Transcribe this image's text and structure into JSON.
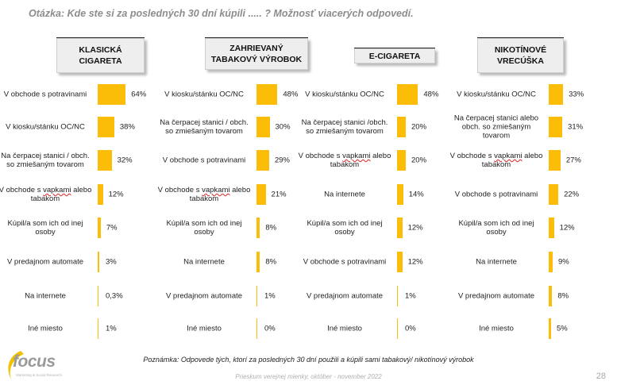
{
  "question": "Otázka: Kde ste si za posledných 30 dní kúpili ..... ? Možnosť viacerých odpovedí.",
  "note": "Poznámka: Odpovede tých, ktorí za posledných 30 dní použili a kúpili sami tabakový/ nikotínový výrobok",
  "footer": "Prieskum verejnej mienky, október - november 2022",
  "page_number": "28",
  "logo": {
    "text": "focus",
    "subtitle": "Marketing & Social Research"
  },
  "bar_color": "#fbbd08",
  "chart_data": [
    {
      "type": "bar",
      "title": "KLASICKÁ\nCIGARETA",
      "categories": [
        "V obchode s potravinami",
        "V kiosku/stánku OC/NC",
        "Na čerpacej stanici / obch. so zmiešaným tovarom",
        "V obchode s vapkami alebo tabakom",
        "Kúpil/a som ich od inej osoby",
        "V predajnom automate",
        "Na internete",
        "Iné miesto"
      ],
      "values": [
        64,
        38,
        32,
        12,
        7,
        3,
        0.3,
        1
      ],
      "labels": [
        "64%",
        "38%",
        "32%",
        "12%",
        "7%",
        "3%",
        "0,3%",
        "1%"
      ]
    },
    {
      "type": "bar",
      "title": "ZAHRIEVANÝ\nTABAKOVÝ VÝROBOK",
      "categories": [
        "V kiosku/stánku OC/NC",
        "Na čerpacej stanici / obch. so zmiešaným tovarom",
        "V obchode s potravinami",
        "V obchode s vapkami alebo tabakom",
        "Kúpil/a som ich od inej osoby",
        "Na internete",
        "V predajnom automate",
        "Iné miesto"
      ],
      "values": [
        48,
        30,
        29,
        21,
        8,
        8,
        1,
        0
      ],
      "labels": [
        "48%",
        "30%",
        "29%",
        "21%",
        "8%",
        "8%",
        "1%",
        "0%"
      ]
    },
    {
      "type": "bar",
      "title": "E-CIGARETA",
      "categories": [
        "V kiosku/stánku OC/NC",
        "Na čerpacej stanici /obch. so zmiešaným tovarom",
        "V obchode s vapkami alebo tabakom",
        "Na internete",
        "Kúpil/a som ich od inej osoby",
        "V obchode s potravinami",
        "V predajnom automate",
        "Iné miesto"
      ],
      "values": [
        48,
        20,
        20,
        14,
        12,
        12,
        1,
        0
      ],
      "labels": [
        "48%",
        "20%",
        "20%",
        "14%",
        "12%",
        "12%",
        "1%",
        "0%"
      ]
    },
    {
      "type": "bar",
      "title": "NIKOTÍNOVÉ\nVRECÚŠKA",
      "categories": [
        "V kiosku/stánku OC/NC",
        "Na čerpacej stanici alebo obch. so zmiešaným tovarom",
        "V obchode s vapkami alebo tabakom",
        "V obchode s potravinami",
        "Kúpil/a som ich od inej osoby",
        "Na internete",
        "V predajnom automate",
        "Iné miesto"
      ],
      "values": [
        33,
        31,
        27,
        22,
        12,
        9,
        8,
        5
      ],
      "labels": [
        "33%",
        "31%",
        "27%",
        "22%",
        "12%",
        "9%",
        "8%",
        "5%"
      ]
    }
  ]
}
